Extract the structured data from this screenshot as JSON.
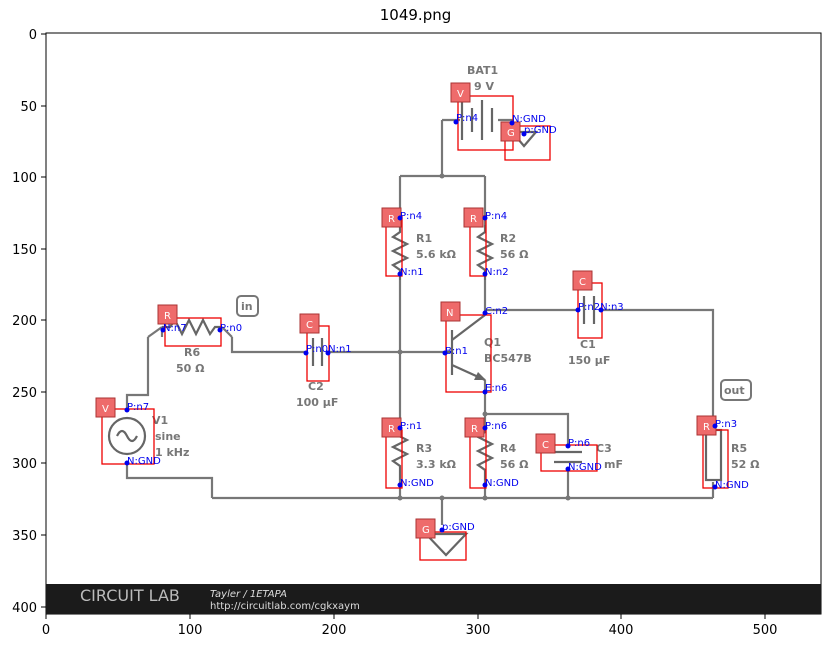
{
  "figure": {
    "title": "1049.png"
  },
  "axes": {
    "x_ticks": [
      "0",
      "100",
      "200",
      "300",
      "400",
      "500"
    ],
    "y_ticks": [
      "0",
      "50",
      "100",
      "150",
      "200",
      "250",
      "300",
      "350",
      "400"
    ]
  },
  "circuit": {
    "labels": {
      "bat1": "BAT1",
      "bat1_val": "9 V",
      "r1": "R1",
      "r1_val": "5.6 kΩ",
      "r2": "R2",
      "r2_val": "56 Ω",
      "r3": "R3",
      "r3_val": "3.3 kΩ",
      "r4": "R4",
      "r4_val": "56 Ω",
      "r5": "R5",
      "r5_val": "52 Ω",
      "r6": "R6",
      "r6_val": "50 Ω",
      "c1": "C1",
      "c1_val": "150 µF",
      "c2": "C2",
      "c2_val": "100 µF",
      "c3": "C3",
      "c3_val": "mF",
      "q1": "Q1",
      "q1_val": "BC547B",
      "v1": "V1",
      "v1_val1": "sine",
      "v1_val2": "1 kHz",
      "in": "in",
      "out": "out"
    },
    "tags": {
      "v": "V",
      "r": "R",
      "c": "C",
      "g": "G",
      "n": "N"
    },
    "pins": {
      "bat_p": "P:n4",
      "bat_n": "N:GND",
      "g1": "p:GND",
      "r1_p": "P:n4",
      "r1_n": "N:n1",
      "r2_p": "P:n4",
      "r2_n": "N:n2",
      "q_c": "C:n2",
      "q_b": "B:n1",
      "q_e": "E:n6",
      "c1": "P:n2N:n3",
      "c2": "P:n0N:n1",
      "r6_n": "N:n7",
      "r6_p": "P:n0",
      "v1_p": "P:n7",
      "v1_n": "N:GND",
      "r3_p": "P:n1",
      "r3_n": "N:GND",
      "r4_p": "P:n6",
      "r4_n": "N:GND",
      "c3_p": "P:n6",
      "c3_n": "N:GND",
      "r5_p": "P:n3",
      "r5_n": "N:GND",
      "g2": "p:GND"
    },
    "footer": {
      "brand": "CIRCUIT LAB",
      "author": "Tayler / 1ETAPA",
      "url": "http://circuitlab.com/cgkxaym"
    }
  }
}
